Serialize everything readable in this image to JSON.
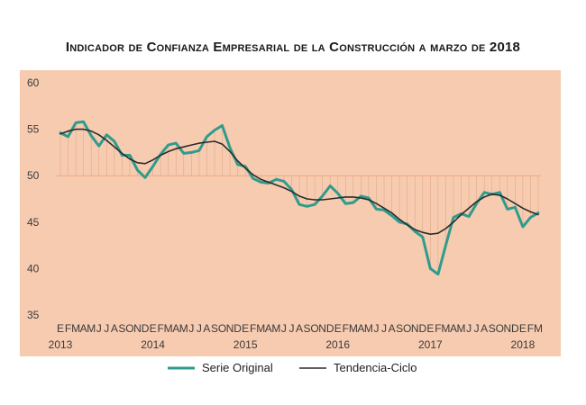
{
  "chart_data": {
    "type": "line",
    "title": "Indicador de Confianza Empresarial de la Construcción a marzo de 2018",
    "xlabel": "",
    "ylabel": "",
    "ylim": [
      35,
      60
    ],
    "yticks": [
      35,
      40,
      45,
      50,
      55,
      60
    ],
    "reference_line": 50,
    "grid": false,
    "legend_position": "bottom",
    "month_labels": [
      "E",
      "F",
      "M",
      "A",
      "M",
      "J",
      "J",
      "A",
      "S",
      "O",
      "N",
      "D",
      "E",
      "F",
      "M",
      "A",
      "M",
      "J",
      "J",
      "A",
      "S",
      "O",
      "N",
      "D",
      "E",
      "F",
      "M",
      "A",
      "M",
      "J",
      "J",
      "A",
      "S",
      "O",
      "N",
      "D",
      "E",
      "F",
      "M",
      "A",
      "M",
      "J",
      "J",
      "A",
      "S",
      "O",
      "N",
      "D",
      "E",
      "F",
      "M",
      "A",
      "M",
      "J",
      "J",
      "A",
      "S",
      "O",
      "N",
      "D",
      "E",
      "F",
      "M"
    ],
    "year_labels": [
      {
        "label": "2013",
        "index": 0
      },
      {
        "label": "2014",
        "index": 12
      },
      {
        "label": "2015",
        "index": 24
      },
      {
        "label": "2016",
        "index": 36
      },
      {
        "label": "2017",
        "index": 48
      },
      {
        "label": "2018",
        "index": 60
      }
    ],
    "series": [
      {
        "name": "Serie Original",
        "color": "#2e9c8c",
        "values": [
          54.6,
          54.2,
          55.7,
          55.8,
          54.3,
          53.2,
          54.4,
          53.7,
          52.2,
          52.2,
          50.6,
          49.8,
          51.0,
          52.3,
          53.3,
          53.5,
          52.4,
          52.5,
          52.7,
          54.2,
          54.9,
          55.4,
          53.0,
          51.2,
          51.0,
          49.7,
          49.3,
          49.2,
          49.6,
          49.4,
          48.5,
          46.9,
          46.7,
          46.9,
          47.8,
          48.9,
          48.1,
          47.0,
          47.1,
          47.8,
          47.6,
          46.4,
          46.3,
          45.7,
          45.0,
          44.8,
          44.0,
          43.4,
          40.0,
          39.4,
          42.5,
          45.5,
          45.9,
          45.6,
          47.0,
          48.2,
          48.0,
          48.2,
          46.4,
          46.6,
          44.5,
          45.5,
          46.0
        ]
      },
      {
        "name": "Tendencia-Ciclo",
        "color": "#2b2b2b",
        "values": [
          54.5,
          54.8,
          55.0,
          55.0,
          54.8,
          54.4,
          53.8,
          53.1,
          52.4,
          51.8,
          51.4,
          51.3,
          51.7,
          52.2,
          52.6,
          52.9,
          53.1,
          53.3,
          53.5,
          53.6,
          53.7,
          53.4,
          52.6,
          51.6,
          50.8,
          50.1,
          49.6,
          49.3,
          49.0,
          48.7,
          48.3,
          47.8,
          47.5,
          47.4,
          47.4,
          47.5,
          47.6,
          47.7,
          47.7,
          47.6,
          47.4,
          47.0,
          46.5,
          46.0,
          45.3,
          44.7,
          44.2,
          43.9,
          43.7,
          43.8,
          44.3,
          45.0,
          45.8,
          46.5,
          47.2,
          47.7,
          48.0,
          47.9,
          47.5,
          47.0,
          46.5,
          46.1,
          45.8
        ]
      }
    ]
  },
  "colors": {
    "plot_background": "#f7cbb0",
    "reference_line": "#f3aa78",
    "drop_lines": "#e2a888"
  }
}
